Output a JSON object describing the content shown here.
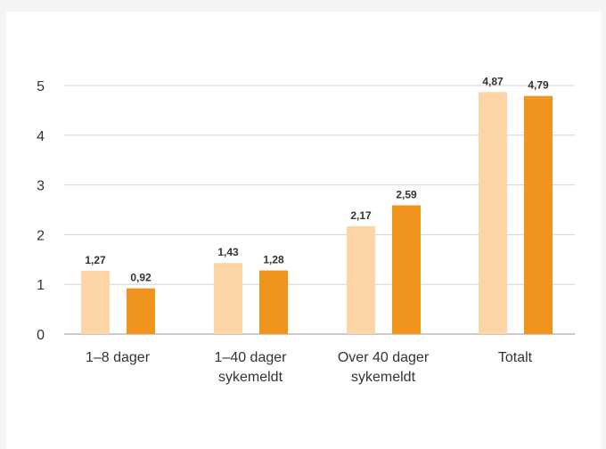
{
  "chart_data": {
    "type": "bar",
    "categories": [
      [
        "1–8 dager"
      ],
      [
        "1–40 dager",
        "sykemeldt"
      ],
      [
        "Over 40 dager",
        "sykemeldt"
      ],
      [
        "Totalt"
      ]
    ],
    "series": [
      {
        "values": [
          1.27,
          1.43,
          2.17,
          4.87
        ],
        "labels": [
          "1,27",
          "1,43",
          "2,17",
          "4,87"
        ],
        "color": "#fdd5a7"
      },
      {
        "values": [
          0.92,
          1.28,
          2.59,
          4.79
        ],
        "labels": [
          "0,92",
          "1,28",
          "2,59",
          "4,79"
        ],
        "color": "#f0941d"
      }
    ],
    "y_ticks": [
      "0",
      "1",
      "2",
      "3",
      "4",
      "5"
    ],
    "ylim": [
      0,
      5
    ],
    "grid": true,
    "legend": "none",
    "title": "",
    "xlabel": "",
    "ylabel": "",
    "gridline_color": "#d6d6d6",
    "axis_color": "#aaaaaa"
  }
}
